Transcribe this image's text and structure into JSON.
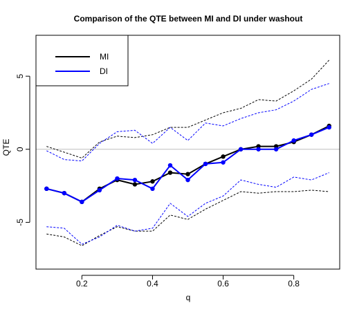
{
  "chart_data": {
    "type": "line",
    "title": "Comparison of the QTE between MI and DI under washout",
    "xlabel": "q",
    "ylabel": "QTE",
    "xlim": [
      0.07,
      0.93
    ],
    "ylim": [
      -8.2,
      7.8
    ],
    "x_ticks": [
      0.2,
      0.4,
      0.6,
      0.8
    ],
    "x_tick_labels": [
      "0.2",
      "0.4",
      "0.6",
      "0.8"
    ],
    "y_ticks": [
      -5,
      0,
      5
    ],
    "y_tick_labels": [
      "-5",
      "0",
      "5"
    ],
    "reference_line": 0,
    "reference_color": "#bebebe",
    "grid": false,
    "legend_position": "top-left",
    "x": [
      0.1,
      0.15,
      0.2,
      0.25,
      0.3,
      0.35,
      0.4,
      0.45,
      0.5,
      0.55,
      0.6,
      0.65,
      0.7,
      0.75,
      0.8,
      0.85,
      0.9
    ],
    "series": [
      {
        "name": "MI",
        "color": "#000000",
        "values": [
          -2.7,
          -3.0,
          -3.6,
          -2.7,
          -2.1,
          -2.4,
          -2.2,
          -1.6,
          -1.7,
          -1.0,
          -0.5,
          -0.0,
          0.2,
          0.2,
          0.5,
          1.0,
          1.6
        ],
        "upper": [
          0.2,
          -0.2,
          -0.6,
          0.5,
          0.9,
          0.8,
          1.0,
          1.5,
          1.5,
          2.0,
          2.5,
          2.8,
          3.4,
          3.3,
          4.0,
          4.8,
          6.1
        ],
        "lower": [
          -5.8,
          -6.0,
          -6.6,
          -5.9,
          -5.3,
          -5.6,
          -5.6,
          -4.5,
          -4.8,
          -4.1,
          -3.5,
          -2.9,
          -3.0,
          -2.9,
          -2.9,
          -2.8,
          -2.9
        ]
      },
      {
        "name": "DI",
        "color": "#0000ff",
        "values": [
          -2.7,
          -3.0,
          -3.6,
          -2.8,
          -2.0,
          -2.1,
          -2.7,
          -1.1,
          -2.1,
          -1.0,
          -0.9,
          0.0,
          0.0,
          0.0,
          0.6,
          1.0,
          1.5
        ],
        "upper": [
          -0.1,
          -0.7,
          -0.8,
          0.4,
          1.2,
          1.3,
          0.4,
          1.5,
          0.6,
          1.8,
          1.6,
          2.1,
          2.5,
          2.7,
          3.3,
          4.1,
          4.5
        ],
        "lower": [
          -5.3,
          -5.4,
          -6.5,
          -6.0,
          -5.2,
          -5.6,
          -5.4,
          -3.7,
          -4.6,
          -3.7,
          -3.2,
          -2.1,
          -2.4,
          -2.6,
          -1.9,
          -2.1,
          -1.6
        ]
      }
    ]
  }
}
